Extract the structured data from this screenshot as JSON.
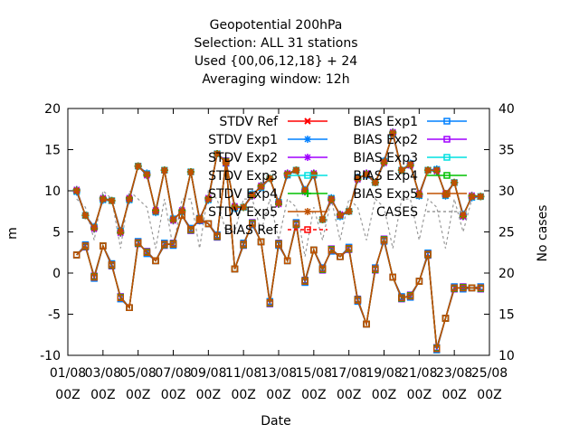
{
  "chart_data": {
    "type": "line",
    "title_lines": [
      "Geopotential 200hPa",
      "Selection: ALL      31 stations",
      "Used {00,06,12,18} + 24",
      "Averaging window: 12h"
    ],
    "xlabel": "Date",
    "ylabel": "m",
    "y2label": "No cases",
    "ylim": [
      -10,
      20
    ],
    "y2lim": [
      10,
      40
    ],
    "yticks": [
      "-10",
      "-5",
      "0",
      "5",
      "10",
      "15",
      "20"
    ],
    "y2ticks": [
      "10",
      "15",
      "20",
      "25",
      "30",
      "35",
      "40"
    ],
    "xtick_labels": [
      [
        "01/08",
        "00Z"
      ],
      [
        "03/08",
        "00Z"
      ],
      [
        "05/08",
        "00Z"
      ],
      [
        "07/08",
        "00Z"
      ],
      [
        "09/08",
        "00Z"
      ],
      [
        "11/08",
        "00Z"
      ],
      [
        "13/08",
        "00Z"
      ],
      [
        "15/08",
        "00Z"
      ],
      [
        "17/08",
        "00Z"
      ],
      [
        "19/08",
        "00Z"
      ],
      [
        "21/08",
        "00Z"
      ],
      [
        "23/08",
        "00Z"
      ],
      [
        "25/08",
        "00Z"
      ]
    ],
    "x_days": [
      1.5,
      2,
      2.5,
      3,
      3.5,
      4,
      4.5,
      5,
      5.5,
      6,
      6.5,
      7,
      7.5,
      8,
      8.5,
      9,
      9.5,
      10,
      10.5,
      11,
      11.5,
      12,
      12.5,
      13,
      13.5,
      14,
      14.5,
      15,
      15.5,
      16,
      16.5,
      17,
      17.5,
      18,
      18.5,
      19,
      19.5,
      20,
      20.5,
      21,
      21.5,
      22,
      22.5,
      23,
      23.5,
      24,
      24.5
    ],
    "legend_left": [
      "STDV Ref",
      "STDV Exp1",
      "STDV Exp2",
      "STDV Exp3",
      "STDV Exp4",
      "STDV Exp5",
      "BIAS Ref"
    ],
    "legend_right": [
      "BIAS Exp1",
      "BIAS Exp2",
      "BIAS Exp3",
      "BIAS Exp4",
      "BIAS Exp5",
      "CASES"
    ],
    "colors": {
      "Ref": "#ff0000",
      "Exp1": "#0080ff",
      "Exp2": "#a000ff",
      "Exp3": "#00e0e0",
      "Exp4": "#00c000",
      "Exp5": "#c05000",
      "cases": "#999999"
    },
    "stdv": [
      10.0,
      7.0,
      5.5,
      9.0,
      8.8,
      5.0,
      9.0,
      13.0,
      12.0,
      7.5,
      12.5,
      6.5,
      7.5,
      12.3,
      6.5,
      9.0,
      14.5,
      13.5,
      8.0,
      8.0,
      9.5,
      10.5,
      11.5,
      8.5,
      12.0,
      12.5,
      10.0,
      12.0,
      6.5,
      9.0,
      7.0,
      7.5,
      11.5,
      12.0,
      11.0,
      13.5,
      17.0,
      12.5,
      13.2,
      9.5,
      12.5,
      12.5,
      9.5,
      11.0,
      7.0,
      9.3,
      9.3
    ],
    "bias": [
      2.2,
      3.3,
      -0.5,
      3.3,
      1.0,
      -3.0,
      -4.2,
      3.7,
      2.5,
      1.5,
      3.5,
      3.5,
      7.0,
      5.3,
      6.5,
      6.0,
      4.5,
      13.5,
      0.5,
      3.5,
      6.0,
      3.8,
      -3.6,
      3.5,
      1.5,
      6.0,
      -1.0,
      2.8,
      0.5,
      2.8,
      2.0,
      3.0,
      -3.3,
      -6.2,
      0.5,
      4.0,
      -0.5,
      -3.0,
      -2.8,
      -1.0,
      2.3,
      -9.2,
      -5.5,
      -1.8,
      -1.8,
      -1.8,
      -1.8
    ],
    "cases": [
      29,
      28,
      24,
      30,
      29,
      23,
      30,
      29,
      28,
      23,
      29,
      23,
      29,
      29,
      23,
      30,
      29,
      25,
      25,
      29,
      29,
      25,
      29,
      24,
      29,
      28,
      22,
      28,
      24,
      29,
      24,
      29,
      28,
      24,
      29,
      28,
      23,
      29,
      29,
      24,
      29,
      28,
      23,
      29,
      25,
      29,
      29
    ]
  }
}
